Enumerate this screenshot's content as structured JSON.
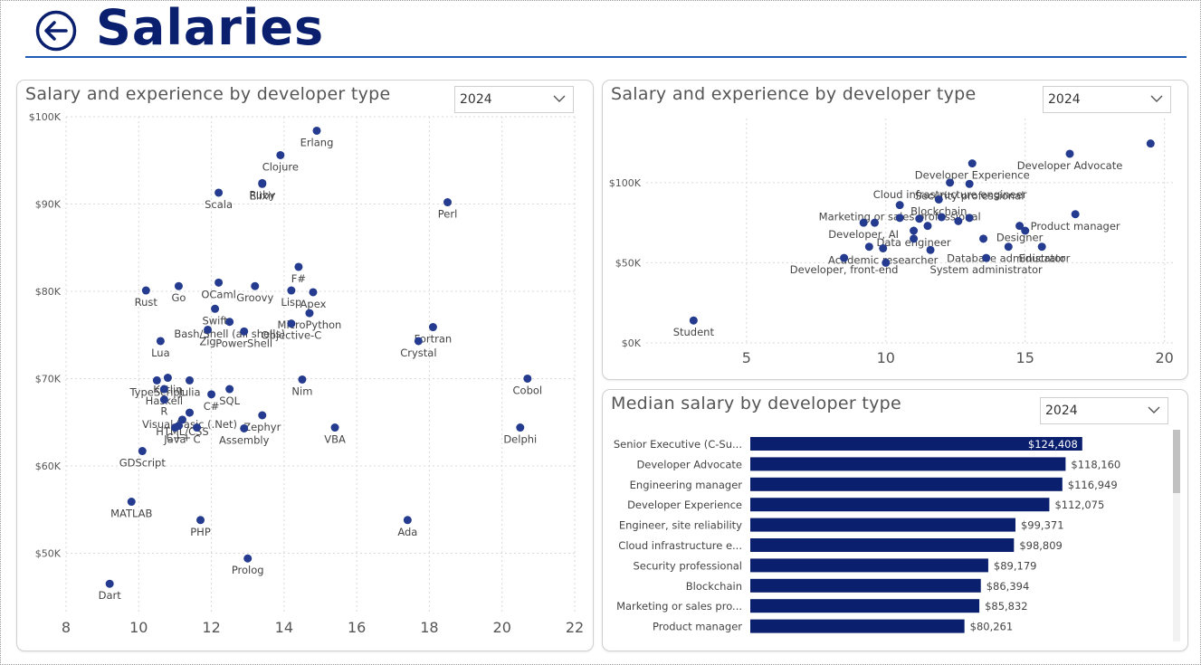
{
  "header": {
    "title": "Salaries"
  },
  "colors": {
    "accent": "#0a1f6e",
    "point": "#243b8f",
    "bar": "#0a1f6e",
    "grid": "#d9d9d9",
    "header_line": "#1f5bb5"
  },
  "icons": {
    "back": "arrow-left-circle-icon",
    "dropdown": "chevron-down-icon"
  },
  "panels": {
    "left": {
      "title": "Salary and experience by developer type",
      "year": "2024"
    },
    "top_right": {
      "title": "Salary and experience by developer type",
      "year": "2024"
    },
    "bottom_right": {
      "title": "Median salary by developer type",
      "year": "2024"
    }
  },
  "chart_data": [
    {
      "type": "scatter",
      "title": "Salary and experience by developer type",
      "xlim": [
        8,
        22
      ],
      "ylim": [
        43000,
        100000
      ],
      "x_ticks": [
        "8",
        "10",
        "12",
        "14",
        "16",
        "18",
        "20",
        "22"
      ],
      "y_ticks": [
        "$50K",
        "$60K",
        "$70K",
        "$80K",
        "$90K",
        "$100K"
      ],
      "grid": true,
      "points": [
        {
          "label": "Erlang",
          "x": 14.9,
          "y": 98400
        },
        {
          "label": "Clojure",
          "x": 13.9,
          "y": 95600
        },
        {
          "label": "Ruby",
          "x": 13.4,
          "y": 92400
        },
        {
          "label": "Elixir",
          "x": 13.4,
          "y": 92300
        },
        {
          "label": "Scala",
          "x": 12.2,
          "y": 91300
        },
        {
          "label": "Perl",
          "x": 18.5,
          "y": 90200
        },
        {
          "label": "F#",
          "x": 14.4,
          "y": 82800
        },
        {
          "label": "OCaml",
          "x": 12.2,
          "y": 81000
        },
        {
          "label": "Lisp",
          "x": 14.2,
          "y": 80100
        },
        {
          "label": "Groovy",
          "x": 13.2,
          "y": 80600
        },
        {
          "label": "Apex",
          "x": 14.8,
          "y": 79900
        },
        {
          "label": "Rust",
          "x": 10.2,
          "y": 80100
        },
        {
          "label": "Go",
          "x": 11.1,
          "y": 80600
        },
        {
          "label": "Swift",
          "x": 12.1,
          "y": 78000
        },
        {
          "label": "MicroPython",
          "x": 14.7,
          "y": 77500
        },
        {
          "label": "Bash/Shell (all shells)",
          "x": 12.5,
          "y": 76500
        },
        {
          "label": "Objective-C",
          "x": 14.2,
          "y": 76300
        },
        {
          "label": "Fortran",
          "x": 18.1,
          "y": 75900
        },
        {
          "label": "Zig",
          "x": 11.9,
          "y": 75600
        },
        {
          "label": "PowerShell",
          "x": 12.9,
          "y": 75400
        },
        {
          "label": "Crystal",
          "x": 17.7,
          "y": 74300
        },
        {
          "label": "Lua",
          "x": 10.6,
          "y": 74300
        },
        {
          "label": "Cobol",
          "x": 20.7,
          "y": 70000
        },
        {
          "label": "Julia",
          "x": 11.4,
          "y": 69800
        },
        {
          "label": "Kotlin",
          "x": 10.8,
          "y": 70100
        },
        {
          "label": "Nim",
          "x": 14.5,
          "y": 69900
        },
        {
          "label": "TypeScript",
          "x": 10.5,
          "y": 69800
        },
        {
          "label": "SQL",
          "x": 12.5,
          "y": 68800
        },
        {
          "label": "Haskell",
          "x": 10.7,
          "y": 68800
        },
        {
          "label": "C#",
          "x": 12.0,
          "y": 68200
        },
        {
          "label": "R",
          "x": 10.7,
          "y": 67600
        },
        {
          "label": "Zephyr",
          "x": 13.4,
          "y": 65800
        },
        {
          "label": "Visual Basic (.Net)",
          "x": 11.4,
          "y": 66100
        },
        {
          "label": "HTML/CSS",
          "x": 11.2,
          "y": 65300
        },
        {
          "label": "VBA",
          "x": 15.4,
          "y": 64400
        },
        {
          "label": "Delphi",
          "x": 20.5,
          "y": 64400
        },
        {
          "label": "C++",
          "x": 11.1,
          "y": 64600
        },
        {
          "label": "C",
          "x": 11.6,
          "y": 64400
        },
        {
          "label": "Assembly",
          "x": 12.9,
          "y": 64300
        },
        {
          "label": "Java",
          "x": 11.0,
          "y": 64400
        },
        {
          "label": "GDScript",
          "x": 10.1,
          "y": 61700
        },
        {
          "label": "MATLAB",
          "x": 9.8,
          "y": 55900
        },
        {
          "label": "PHP",
          "x": 11.7,
          "y": 53800
        },
        {
          "label": "Ada",
          "x": 17.4,
          "y": 53800
        },
        {
          "label": "Prolog",
          "x": 13.0,
          "y": 49400
        },
        {
          "label": "Dart",
          "x": 9.2,
          "y": 46500
        }
      ]
    },
    {
      "type": "scatter",
      "title": "Salary and experience by developer type",
      "xlim": [
        1.4,
        20.4
      ],
      "ylim": [
        0,
        140000
      ],
      "x_ticks": [
        "5",
        "10",
        "15",
        "20"
      ],
      "y_ticks": [
        "$0K",
        "$50K",
        "$100K"
      ],
      "grid": true,
      "points": [
        {
          "label": "Developer Advocate",
          "x": 16.6,
          "y": 118000
        },
        {
          "label": "",
          "x": 19.5,
          "y": 124400
        },
        {
          "label": "Developer Experience",
          "x": 13.1,
          "y": 112000
        },
        {
          "label": "Cloud infrastructure engineer",
          "x": 12.3,
          "y": 100000
        },
        {
          "label": "Security professional",
          "x": 13.0,
          "y": 99200
        },
        {
          "label": "Blockchain",
          "x": 11.9,
          "y": 89500
        },
        {
          "label": "Marketing or sales professional",
          "x": 10.5,
          "y": 86000
        },
        {
          "label": "Designer",
          "x": 14.8,
          "y": 73000
        },
        {
          "label": "Product manager",
          "x": 16.8,
          "y": 80300
        },
        {
          "label": "Developer, AI",
          "x": 9.2,
          "y": 75000
        },
        {
          "label": "",
          "x": 9.6,
          "y": 75000
        },
        {
          "label": "",
          "x": 10.5,
          "y": 78000
        },
        {
          "label": "",
          "x": 11.2,
          "y": 77500
        },
        {
          "label": "",
          "x": 12.0,
          "y": 78500
        },
        {
          "label": "",
          "x": 12.6,
          "y": 76000
        },
        {
          "label": "Data engineer",
          "x": 11.0,
          "y": 70000
        },
        {
          "label": "",
          "x": 11.5,
          "y": 73000
        },
        {
          "label": "",
          "x": 13.0,
          "y": 78000
        },
        {
          "label": "Academic researcher",
          "x": 9.9,
          "y": 59000
        },
        {
          "label": "",
          "x": 9.4,
          "y": 60000
        },
        {
          "label": "",
          "x": 11.0,
          "y": 65000
        },
        {
          "label": "Database administrator",
          "x": 14.4,
          "y": 60000
        },
        {
          "label": "",
          "x": 13.5,
          "y": 65000
        },
        {
          "label": "Educator",
          "x": 15.6,
          "y": 60000
        },
        {
          "label": "",
          "x": 15.0,
          "y": 70000
        },
        {
          "label": "",
          "x": 11.6,
          "y": 58000
        },
        {
          "label": "Developer, front-end",
          "x": 8.5,
          "y": 53000
        },
        {
          "label": "",
          "x": 10.0,
          "y": 50000
        },
        {
          "label": "System administrator",
          "x": 13.6,
          "y": 53000
        },
        {
          "label": "Student",
          "x": 3.1,
          "y": 14000
        }
      ]
    },
    {
      "type": "bar",
      "orientation": "horizontal",
      "title": "Median salary by developer type",
      "categories": [
        "Senior Executive (C-Su...",
        "Developer Advocate",
        "Engineering manager",
        "Developer Experience",
        "Engineer, site reliability",
        "Cloud infrastructure e...",
        "Security professional",
        "Blockchain",
        "Marketing or sales pro...",
        "Product manager"
      ],
      "values": [
        124408,
        118160,
        116949,
        112075,
        99371,
        98809,
        89179,
        86394,
        85832,
        80261
      ],
      "data_labels": [
        "$124,408",
        "$118,160",
        "$116,949",
        "$112,075",
        "$99,371",
        "$98,809",
        "$89,179",
        "$86,394",
        "$85,832",
        "$80,261"
      ],
      "xlim": [
        0,
        155000
      ]
    }
  ]
}
